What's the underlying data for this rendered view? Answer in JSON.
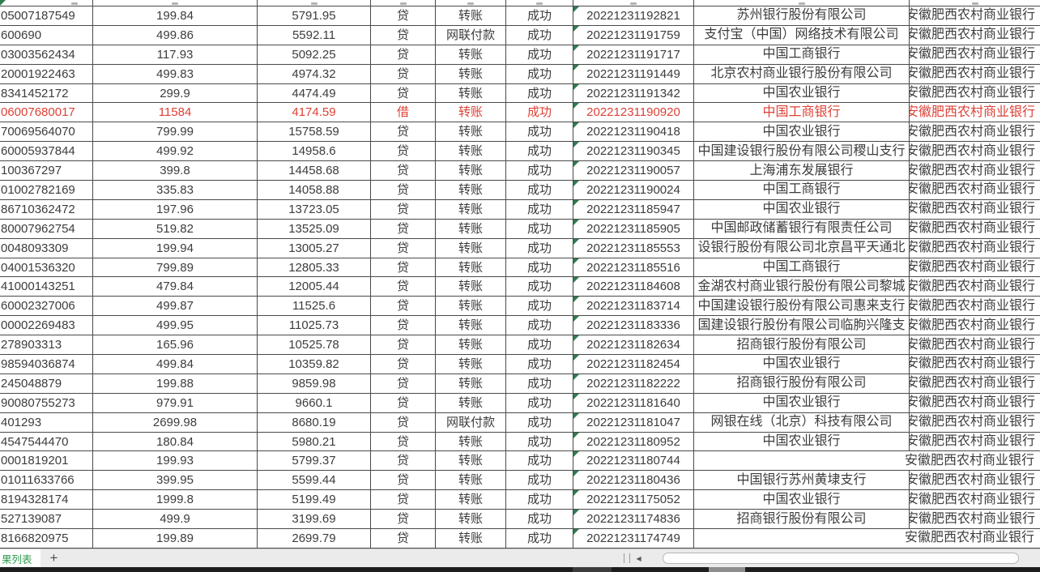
{
  "sheet": {
    "rows": [
      {
        "account": "05007187549",
        "amount": "199.84",
        "balance": "5791.95",
        "flag": "贷",
        "type": "转账",
        "status": "成功",
        "timestamp": "20221231192821",
        "bank": "苏州银行股份有限公司",
        "region": "安徽肥西农村商业银行",
        "red": false
      },
      {
        "account": "600690",
        "amount": "499.86",
        "balance": "5592.11",
        "flag": "贷",
        "type": "网联付款",
        "status": "成功",
        "timestamp": "20221231191759",
        "bank": "支付宝（中国）网络技术有限公司",
        "region": "安徽肥西农村商业银行",
        "red": false
      },
      {
        "account": "03003562434",
        "amount": "117.93",
        "balance": "5092.25",
        "flag": "贷",
        "type": "转账",
        "status": "成功",
        "timestamp": "20221231191717",
        "bank": "中国工商银行",
        "region": "安徽肥西农村商业银行",
        "red": false
      },
      {
        "account": "20001922463",
        "amount": "499.83",
        "balance": "4974.32",
        "flag": "贷",
        "type": "转账",
        "status": "成功",
        "timestamp": "20221231191449",
        "bank": "北京农村商业银行股份有限公司",
        "region": "安徽肥西农村商业银行",
        "red": false
      },
      {
        "account": "8341452172",
        "amount": "299.9",
        "balance": "4474.49",
        "flag": "贷",
        "type": "转账",
        "status": "成功",
        "timestamp": "20221231191342",
        "bank": "中国农业银行",
        "region": "安徽肥西农村商业银行",
        "red": false
      },
      {
        "account": "06007680017",
        "amount": "11584",
        "balance": "4174.59",
        "flag": "借",
        "type": "转账",
        "status": "成功",
        "timestamp": "20221231190920",
        "bank": "中国工商银行",
        "region": "安徽肥西农村商业银行",
        "red": true
      },
      {
        "account": "70069564070",
        "amount": "799.99",
        "balance": "15758.59",
        "flag": "贷",
        "type": "转账",
        "status": "成功",
        "timestamp": "20221231190418",
        "bank": "中国农业银行",
        "region": "安徽肥西农村商业银行",
        "red": false
      },
      {
        "account": "60005937844",
        "amount": "499.92",
        "balance": "14958.6",
        "flag": "贷",
        "type": "转账",
        "status": "成功",
        "timestamp": "20221231190345",
        "bank": "中国建设银行股份有限公司稷山支行",
        "region": "安徽肥西农村商业银行",
        "red": false
      },
      {
        "account": "100367297",
        "amount": "399.8",
        "balance": "14458.68",
        "flag": "贷",
        "type": "转账",
        "status": "成功",
        "timestamp": "20221231190057",
        "bank": "上海浦东发展银行",
        "region": "安徽肥西农村商业银行",
        "red": false
      },
      {
        "account": "01002782169",
        "amount": "335.83",
        "balance": "14058.88",
        "flag": "贷",
        "type": "转账",
        "status": "成功",
        "timestamp": "20221231190024",
        "bank": "中国工商银行",
        "region": "安徽肥西农村商业银行",
        "red": false
      },
      {
        "account": "86710362472",
        "amount": "197.96",
        "balance": "13723.05",
        "flag": "贷",
        "type": "转账",
        "status": "成功",
        "timestamp": "20221231185947",
        "bank": "中国农业银行",
        "region": "安徽肥西农村商业银行",
        "red": false
      },
      {
        "account": "80007962754",
        "amount": "519.82",
        "balance": "13525.09",
        "flag": "贷",
        "type": "转账",
        "status": "成功",
        "timestamp": "20221231185905",
        "bank": "中国邮政储蓄银行有限责任公司",
        "region": "安徽肥西农村商业银行",
        "red": false
      },
      {
        "account": "0048093309",
        "amount": "199.94",
        "balance": "13005.27",
        "flag": "贷",
        "type": "转账",
        "status": "成功",
        "timestamp": "20221231185553",
        "bank": "设银行股份有限公司北京昌平天通北",
        "region": "安徽肥西农村商业银行",
        "red": false
      },
      {
        "account": "04001536320",
        "amount": "799.89",
        "balance": "12805.33",
        "flag": "贷",
        "type": "转账",
        "status": "成功",
        "timestamp": "20221231185516",
        "bank": "中国工商银行",
        "region": "安徽肥西农村商业银行",
        "red": false
      },
      {
        "account": "41000143251",
        "amount": "479.84",
        "balance": "12005.44",
        "flag": "贷",
        "type": "转账",
        "status": "成功",
        "timestamp": "20221231184608",
        "bank": "金湖农村商业银行股份有限公司黎城",
        "region": "安徽肥西农村商业银行",
        "red": false
      },
      {
        "account": "60002327006",
        "amount": "499.87",
        "balance": "11525.6",
        "flag": "贷",
        "type": "转账",
        "status": "成功",
        "timestamp": "20221231183714",
        "bank": "中国建设银行股份有限公司惠来支行",
        "region": "安徽肥西农村商业银行",
        "red": false
      },
      {
        "account": "00002269483",
        "amount": "499.95",
        "balance": "11025.73",
        "flag": "贷",
        "type": "转账",
        "status": "成功",
        "timestamp": "20221231183336",
        "bank": "国建设银行股份有限公司临朐兴隆支",
        "region": "安徽肥西农村商业银行",
        "red": false
      },
      {
        "account": "278903313",
        "amount": "165.96",
        "balance": "10525.78",
        "flag": "贷",
        "type": "转账",
        "status": "成功",
        "timestamp": "20221231182634",
        "bank": "招商银行股份有限公司",
        "region": "安徽肥西农村商业银行",
        "red": false
      },
      {
        "account": "98594036874",
        "amount": "499.84",
        "balance": "10359.82",
        "flag": "贷",
        "type": "转账",
        "status": "成功",
        "timestamp": "20221231182454",
        "bank": "中国农业银行",
        "region": "安徽肥西农村商业银行",
        "red": false
      },
      {
        "account": "245048879",
        "amount": "199.88",
        "balance": "9859.98",
        "flag": "贷",
        "type": "转账",
        "status": "成功",
        "timestamp": "20221231182222",
        "bank": "招商银行股份有限公司",
        "region": "安徽肥西农村商业银行",
        "red": false
      },
      {
        "account": "90080755273",
        "amount": "979.91",
        "balance": "9660.1",
        "flag": "贷",
        "type": "转账",
        "status": "成功",
        "timestamp": "20221231181640",
        "bank": "中国农业银行",
        "region": "安徽肥西农村商业银行",
        "red": false
      },
      {
        "account": "401293",
        "amount": "2699.98",
        "balance": "8680.19",
        "flag": "贷",
        "type": "网联付款",
        "status": "成功",
        "timestamp": "20221231181047",
        "bank": "网银在线（北京）科技有限公司",
        "region": "安徽肥西农村商业银行",
        "red": false
      },
      {
        "account": "4547544470",
        "amount": "180.84",
        "balance": "5980.21",
        "flag": "贷",
        "type": "转账",
        "status": "成功",
        "timestamp": "20221231180952",
        "bank": "中国农业银行",
        "region": "安徽肥西农村商业银行",
        "red": false
      },
      {
        "account": "0001819201",
        "amount": "199.93",
        "balance": "5799.37",
        "flag": "贷",
        "type": "转账",
        "status": "成功",
        "timestamp": "20221231180744",
        "bank": "",
        "region": "安徽肥西农村商业银行",
        "red": false
      },
      {
        "account": "01011633766",
        "amount": "399.95",
        "balance": "5599.44",
        "flag": "贷",
        "type": "转账",
        "status": "成功",
        "timestamp": "20221231180436",
        "bank": "中国银行苏州黄埭支行",
        "region": "安徽肥西农村商业银行",
        "red": false
      },
      {
        "account": "8194328174",
        "amount": "1999.8",
        "balance": "5199.49",
        "flag": "贷",
        "type": "转账",
        "status": "成功",
        "timestamp": "20221231175052",
        "bank": "中国农业银行",
        "region": "安徽肥西农村商业银行",
        "red": false
      },
      {
        "account": "527139087",
        "amount": "499.9",
        "balance": "3199.69",
        "flag": "贷",
        "type": "转账",
        "status": "成功",
        "timestamp": "20221231174836",
        "bank": "招商银行股份有限公司",
        "region": "安徽肥西农村商业银行",
        "red": false
      },
      {
        "account": "8166820975",
        "amount": "199.89",
        "balance": "2699.79",
        "flag": "贷",
        "type": "转账",
        "status": "成功",
        "timestamp": "20221231174749",
        "bank": "",
        "region": "安徽肥西农村商业银行",
        "red": false
      }
    ]
  },
  "tab_bar": {
    "sheet_tab_label": "果列表",
    "add_sheet_label": "+",
    "scroll_left_glyph": "◀"
  },
  "colors": {
    "grid_line": "#4a4a4a",
    "cell_text": "#3c3c3c",
    "flagged_row_text": "#dd4136",
    "error_triangle": "#2e7d4f",
    "sheet_tab_text": "#2f9e4f",
    "tab_bar_bg": "#ebebeb"
  }
}
